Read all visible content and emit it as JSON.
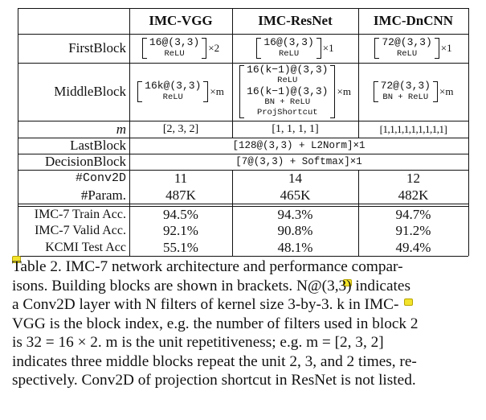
{
  "table": {
    "headers": [
      "IMC-VGG",
      "IMC-ResNet",
      "IMC-DnCNN"
    ],
    "rows": {
      "first_block": {
        "label": "FirstBlock",
        "vgg": {
          "line1": "16@(3,3)",
          "line2": "ReLU",
          "mult": "×2"
        },
        "resnet": {
          "line1": "16@(3,3)",
          "line2": "ReLU",
          "mult": "×1"
        },
        "dncnn": {
          "line1": "72@(3,3)",
          "line2": "ReLU",
          "mult": "×1"
        }
      },
      "middle_block": {
        "label": "MiddleBlock",
        "vgg": {
          "line1": "16k@(3,3)",
          "line2": "ReLU",
          "mult": "×m"
        },
        "resnet": {
          "lines": [
            "16(k−1)@(3,3)",
            "ReLU",
            "16(k−1)@(3,3)",
            "BN + ReLU",
            "ProjShortcut"
          ],
          "mult": "×m"
        },
        "dncnn": {
          "line1": "72@(3,3)",
          "line2": "BN + ReLU",
          "mult": "×m"
        }
      },
      "m": {
        "label": "m",
        "vgg": "[2, 3, 2]",
        "resnet": "[1, 1, 1, 1]",
        "dncnn": "[1,1,1,1,1,1,1,1,1]"
      },
      "last_block": {
        "label": "LastBlock",
        "content": "[128@(3,3) + L2Norm]×1"
      },
      "decision_block": {
        "label": "DecisionBlock",
        "content": "[7@(3,3) + Softmax]×1"
      },
      "conv2d": {
        "label": "#Conv2D",
        "vgg": "11",
        "resnet": "14",
        "dncnn": "12"
      },
      "params": {
        "label": "#Param.",
        "vgg": "487K",
        "resnet": "465K",
        "dncnn": "482K"
      },
      "train": {
        "label": "IMC-7 Train Acc.",
        "vgg": "94.5%",
        "resnet": "94.3%",
        "dncnn": "94.7%"
      },
      "valid": {
        "label": "IMC-7 Valid Acc.",
        "vgg": "92.1%",
        "resnet": "90.8%",
        "dncnn": "91.2%"
      },
      "kcmi": {
        "label": "KCMI Test Acc",
        "vgg": "55.1%",
        "resnet": "48.1%",
        "dncnn": "49.4%"
      }
    }
  },
  "caption": {
    "lines": [
      "Table 2. IMC-7 network architecture and performance compar-",
      "isons. Building blocks are shown in brackets. N@(3,3) indicates",
      "a Conv2D layer with N filters of kernel size 3-by-3. k in IMC-",
      "VGG is the block index, e.g. the number of filters used in block 2",
      "is 32 = 16 × 2. m is the unit repetitiveness; e.g. m = [2, 3, 2]",
      "indicates three middle blocks repeat the unit 2, 3, and 2 times, re-",
      "spectively. Conv2D of projection shortcut in ResNet is not listed."
    ]
  },
  "colors": {
    "annotation_note": "#f3e32b",
    "text": "#111111"
  }
}
